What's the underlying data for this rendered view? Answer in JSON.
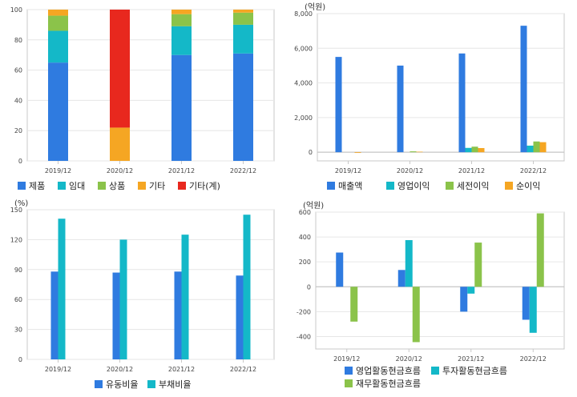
{
  "charts": [
    {
      "id": "p1",
      "chart_data": {
        "type": "bar",
        "stacked": true,
        "unit": "",
        "categories": [
          "2019/12",
          "2020/12",
          "2021/12",
          "2022/12"
        ],
        "ylim": [
          0,
          100
        ],
        "yticks": [
          0,
          20,
          40,
          60,
          80,
          100
        ],
        "series": [
          {
            "name": "제품",
            "color": "#2f7be0",
            "values": [
              65,
              0,
              70,
              71
            ]
          },
          {
            "name": "임대",
            "color": "#14b8c8",
            "values": [
              21,
              0,
              19,
              19
            ]
          },
          {
            "name": "상품",
            "color": "#8bc34a",
            "values": [
              10,
              0,
              8,
              8
            ]
          },
          {
            "name": "기타",
            "color": "#f5a623",
            "values": [
              4,
              22,
              3,
              2
            ]
          },
          {
            "name": "기타(계)",
            "color": "#e8281e",
            "values": [
              0,
              78,
              0,
              0
            ]
          }
        ],
        "legend": "bottom",
        "grid": true
      }
    },
    {
      "id": "p2",
      "chart_data": {
        "type": "bar",
        "unit": "(억원)",
        "categories": [
          "2019/12",
          "2020/12",
          "2021/12",
          "2022/12"
        ],
        "ylim": [
          -500,
          8000
        ],
        "yticks": [
          0,
          2000,
          4000,
          6000,
          8000
        ],
        "yticklabels": [
          "0",
          "2,000",
          "4,000",
          "6,000",
          "8,000"
        ],
        "series": [
          {
            "name": "매출액",
            "color": "#2f7be0",
            "values": [
              5500,
              5000,
              5700,
              7300
            ]
          },
          {
            "name": "영업이익",
            "color": "#14b8c8",
            "values": [
              0,
              0,
              250,
              380
            ]
          },
          {
            "name": "세전이익",
            "color": "#8bc34a",
            "values": [
              0,
              50,
              320,
              620
            ]
          },
          {
            "name": "순이익",
            "color": "#f5a623",
            "values": [
              -40,
              30,
              240,
              580
            ]
          }
        ],
        "legend": "bottom",
        "grid": true
      }
    },
    {
      "id": "p3",
      "chart_data": {
        "type": "bar",
        "unit": "(%)",
        "categories": [
          "2019/12",
          "2020/12",
          "2021/12",
          "2022/12"
        ],
        "ylim": [
          0,
          150
        ],
        "yticks": [
          0,
          30,
          60,
          90,
          120,
          150
        ],
        "series": [
          {
            "name": "유동비율",
            "color": "#2f7be0",
            "values": [
              88,
              87,
              88,
              84
            ]
          },
          {
            "name": "부채비율",
            "color": "#14b8c8",
            "values": [
              141,
              120,
              125,
              145
            ]
          }
        ],
        "legend": "bottom",
        "grid": true
      }
    },
    {
      "id": "p4",
      "chart_data": {
        "type": "bar",
        "unit": "(억원)",
        "categories": [
          "2019/12",
          "2020/12",
          "2021/12",
          "2022/12"
        ],
        "ylim": [
          -500,
          600
        ],
        "yticks": [
          -400,
          -200,
          0,
          200,
          400,
          600
        ],
        "series": [
          {
            "name": "영업활동현금흐름",
            "color": "#2f7be0",
            "values": [
              275,
              135,
              -200,
              -265
            ]
          },
          {
            "name": "투자활동현금흐름",
            "color": "#14b8c8",
            "values": [
              0,
              375,
              -55,
              -370
            ]
          },
          {
            "name": "재무활동현금흐름",
            "color": "#8bc34a",
            "values": [
              -280,
              -445,
              355,
              590
            ]
          }
        ],
        "legend": "bottom",
        "grid": true
      }
    }
  ]
}
